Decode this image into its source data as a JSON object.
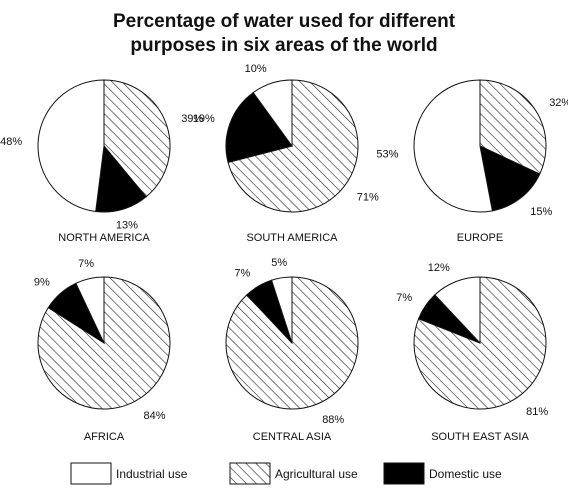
{
  "chart_data": {
    "type": "pie",
    "title_lines": [
      "Percentage of water used for different",
      "purposes in six areas of the world"
    ],
    "categories": [
      "Industrial use",
      "Agricultural use",
      "Domestic use"
    ],
    "colors": {
      "Industrial use": "#ffffff",
      "Agricultural use": "hatch",
      "Domestic use": "#000000"
    },
    "pies": [
      {
        "name": "NORTH AMERICA",
        "values": {
          "Industrial use": 48,
          "Agricultural use": 39,
          "Domestic use": 13
        },
        "labels": {
          "Industrial use": "48%",
          "Agricultural use": "39%",
          "Domestic use": "13%"
        }
      },
      {
        "name": "SOUTH AMERICA",
        "values": {
          "Industrial use": 10,
          "Agricultural use": 71,
          "Domestic use": 19
        },
        "labels": {
          "Industrial use": "10%",
          "Agricultural use": "71%",
          "Domestic use": "19%"
        }
      },
      {
        "name": "EUROPE",
        "values": {
          "Industrial use": 53,
          "Agricultural use": 32,
          "Domestic use": 15
        },
        "labels": {
          "Industrial use": "53%",
          "Agricultural use": "32%",
          "Domestic use": "15%"
        }
      },
      {
        "name": "AFRICA",
        "values": {
          "Industrial use": 7,
          "Agricultural use": 84,
          "Domestic use": 9
        },
        "labels": {
          "Industrial use": "7%",
          "Agricultural use": "84%",
          "Domestic use": "9%"
        }
      },
      {
        "name": "CENTRAL ASIA",
        "values": {
          "Industrial use": 5,
          "Agricultural use": 88,
          "Domestic use": 7
        },
        "labels": {
          "Industrial use": "5%",
          "Agricultural use": "88%",
          "Domestic use": "7%"
        }
      },
      {
        "name": "SOUTH EAST ASIA",
        "values": {
          "Industrial use": 12,
          "Agricultural use": 81,
          "Domestic use": 7
        },
        "labels": {
          "Industrial use": "12%",
          "Agricultural use": "81%",
          "Domestic use": "7%"
        }
      }
    ],
    "legend": [
      "Industrial use",
      "Agricultural use",
      "Domestic use"
    ],
    "legend_position": "bottom"
  }
}
